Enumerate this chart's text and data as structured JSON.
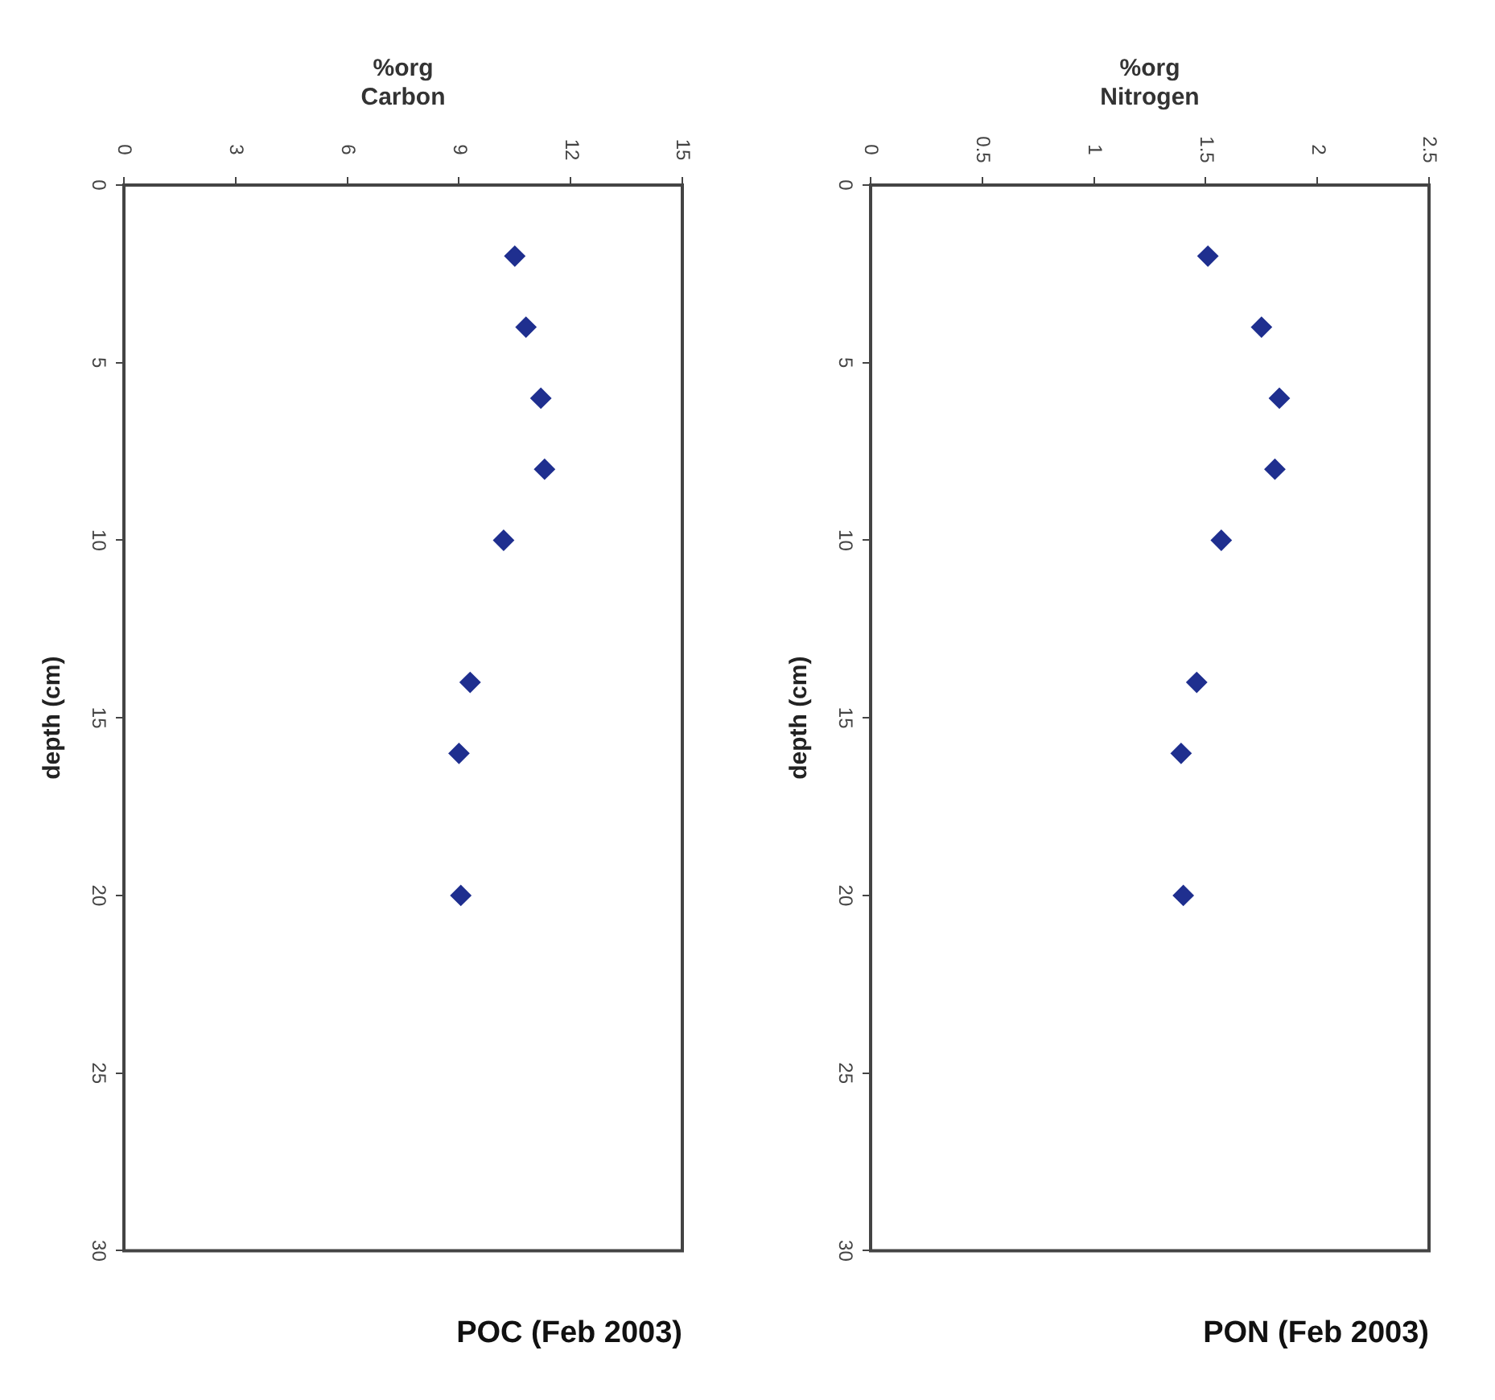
{
  "chart_data": [
    {
      "type": "scatter",
      "title": "POC (Feb 2003)",
      "xlabel": "%org\nCarbon",
      "ylabel": "depth (cm)",
      "marker": "diamond",
      "grid": false,
      "legend": false,
      "xlim": [
        0,
        15
      ],
      "xticks": [
        0,
        3,
        6,
        9,
        12,
        15
      ],
      "ylim": [
        30,
        0
      ],
      "yticks": [
        0,
        5,
        10,
        15,
        20,
        25,
        30
      ],
      "series": [
        {
          "color": "#1f2f8f",
          "x": [
            10.5,
            10.8,
            11.2,
            11.3,
            10.2,
            9.3,
            9.0,
            9.05
          ],
          "values": [
            2,
            4,
            6,
            8,
            10,
            14,
            16,
            20
          ]
        }
      ]
    },
    {
      "type": "scatter",
      "title": "PON (Feb 2003)",
      "xlabel": "%org\nNitrogen",
      "ylabel": "depth (cm)",
      "marker": "diamond",
      "grid": false,
      "legend": false,
      "xlim": [
        0,
        2.5
      ],
      "xticks": [
        0,
        0.5,
        1,
        1.5,
        2,
        2.5
      ],
      "ylim": [
        30,
        0
      ],
      "yticks": [
        0,
        5,
        10,
        15,
        20,
        25,
        30
      ],
      "series": [
        {
          "color": "#1f2f8f",
          "x": [
            1.51,
            1.75,
            1.83,
            1.81,
            1.57,
            1.46,
            1.39,
            1.4
          ],
          "values": [
            2,
            4,
            6,
            8,
            10,
            14,
            16,
            20
          ]
        }
      ]
    }
  ]
}
